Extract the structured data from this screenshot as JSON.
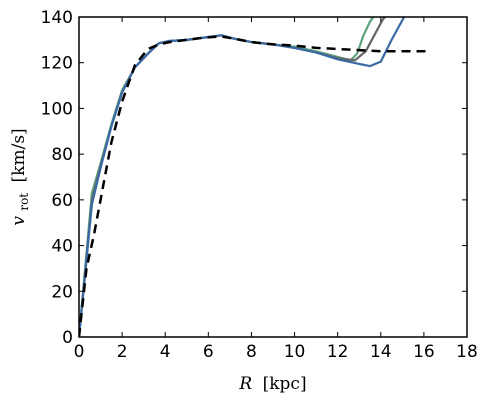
{
  "chart_data": {
    "type": "line",
    "xlabel_symbol": "R",
    "xlabel_unit": "[kpc]",
    "ylabel_symbol": "v",
    "ylabel_subscript": "rot",
    "ylabel_unit": "[km/s]",
    "xlim": [
      0,
      18
    ],
    "ylim": [
      0,
      140
    ],
    "x_ticks": [
      "0",
      "2",
      "4",
      "6",
      "8",
      "10",
      "12",
      "14",
      "16",
      "18"
    ],
    "y_ticks": [
      "0",
      "20",
      "40",
      "60",
      "80",
      "100",
      "120",
      "140"
    ],
    "grid": false,
    "legend": "none",
    "series": [
      {
        "style": "dashed",
        "color": "#000000",
        "x": [
          0,
          0.35,
          0.7,
          1.1,
          1.5,
          2.0,
          2.6,
          3.2,
          3.7,
          4.2,
          5.0,
          5.8,
          6.6,
          7.2,
          8.0,
          9.0,
          10.0,
          11.0,
          12.0,
          13.0,
          14.0,
          15.0,
          16.3
        ],
        "y": [
          0,
          30,
          45,
          65,
          85,
          103,
          119,
          126,
          128,
          129,
          130,
          131,
          131.5,
          130.5,
          129,
          128,
          127.5,
          126.5,
          126,
          125.5,
          125,
          125,
          125
        ]
      },
      {
        "style": "solid",
        "color": "#5aa37c",
        "x": [
          0,
          0.6,
          1.0,
          1.5,
          2.0,
          2.6,
          3.2,
          3.7,
          4.2,
          5.0,
          5.8,
          6.6,
          7.2,
          8.0,
          9.0,
          10.0,
          11.0,
          12.0,
          12.6,
          12.9,
          13.2,
          13.5,
          13.8
        ],
        "y": [
          0,
          63,
          76,
          93,
          108,
          118,
          124,
          128.5,
          129.5,
          130,
          131,
          132,
          130.5,
          129,
          128,
          127,
          125,
          122.5,
          121,
          124,
          132,
          138,
          142
        ]
      },
      {
        "style": "solid",
        "color": "#666666",
        "x": [
          0,
          0.6,
          1.0,
          1.5,
          2.0,
          2.6,
          3.2,
          3.7,
          4.2,
          5.0,
          5.8,
          6.6,
          7.2,
          8.0,
          9.0,
          10.0,
          11.0,
          12.0,
          12.8,
          13.3,
          13.7,
          14.1,
          14.4
        ],
        "y": [
          0,
          60,
          75,
          92,
          107,
          118,
          124,
          128.5,
          129.5,
          130,
          131,
          132,
          130.5,
          129,
          128,
          126.5,
          124.5,
          122,
          121,
          125,
          132,
          139,
          142
        ]
      },
      {
        "style": "solid",
        "color": "#3a6aa5",
        "x": [
          0,
          0.6,
          1.0,
          1.5,
          2.0,
          2.6,
          3.2,
          3.7,
          4.2,
          5.0,
          5.8,
          6.6,
          7.2,
          8.0,
          9.0,
          10.0,
          11.0,
          12.0,
          13.0,
          13.5,
          14.0,
          14.5,
          15.2
        ],
        "y": [
          0,
          58,
          74,
          92,
          107,
          118,
          124,
          128.5,
          129.5,
          130,
          131,
          132,
          130.5,
          129,
          128,
          126.5,
          124.5,
          121.5,
          119.5,
          118.5,
          120.5,
          130,
          142
        ]
      }
    ]
  }
}
